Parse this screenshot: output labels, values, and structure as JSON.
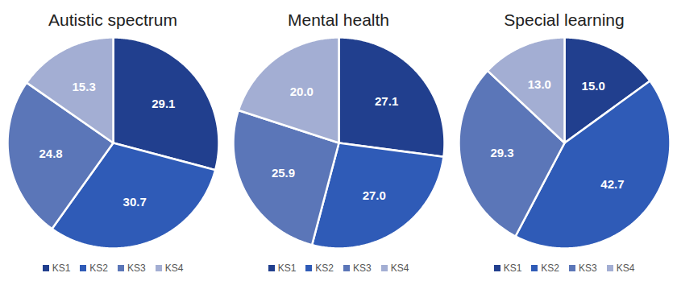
{
  "chart_data": [
    {
      "type": "pie",
      "title": "Autistic spectrum",
      "categories": [
        "KS1",
        "KS2",
        "KS3",
        "KS4"
      ],
      "values": [
        29.1,
        30.7,
        24.8,
        15.3
      ],
      "value_labels": [
        "29.1",
        "30.7",
        "24.8",
        "15.3"
      ],
      "colors": [
        "#213f8e",
        "#2f5bb7",
        "#5b76b8",
        "#a3aed3"
      ],
      "data_labels": true,
      "legend": "bottom"
    },
    {
      "type": "pie",
      "title": "Mental health",
      "categories": [
        "KS1",
        "KS2",
        "KS3",
        "KS4"
      ],
      "values": [
        27.1,
        27.0,
        25.9,
        20.0
      ],
      "value_labels": [
        "27.1",
        "27.0",
        "25.9",
        "20.0"
      ],
      "colors": [
        "#213f8e",
        "#2f5bb7",
        "#5b76b8",
        "#a3aed3"
      ],
      "data_labels": true,
      "legend": "bottom"
    },
    {
      "type": "pie",
      "title": "Special learning",
      "categories": [
        "KS1",
        "KS2",
        "KS3",
        "KS4"
      ],
      "values": [
        15.0,
        42.7,
        29.3,
        13.0
      ],
      "value_labels": [
        "15.0",
        "42.7",
        "29.3",
        "13.0"
      ],
      "colors": [
        "#213f8e",
        "#2f5bb7",
        "#5b76b8",
        "#a3aed3"
      ],
      "data_labels": true,
      "legend": "bottom"
    }
  ]
}
